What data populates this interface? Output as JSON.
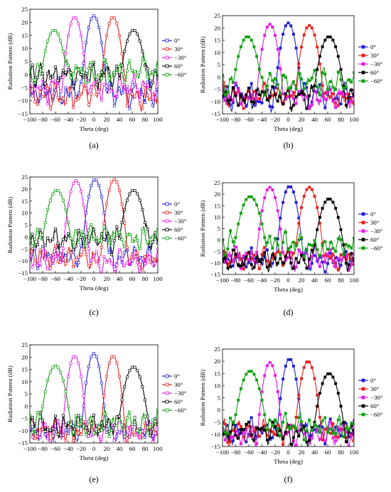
{
  "chart_data": [
    {
      "panel_label": "(a)",
      "type": "line",
      "xlabel": "Theta (deg)",
      "ylabel": "Radiation Pattern (dB)",
      "xlim": [
        -100,
        100
      ],
      "ylim": [
        -15,
        25
      ],
      "xticks": [
        "−100",
        "−80",
        "−60",
        "−40",
        "−20",
        "0",
        "20",
        "40",
        "60",
        "80",
        "100"
      ],
      "yticks": [
        "−15",
        "−10",
        "−5",
        "0",
        "5",
        "10",
        "15",
        "20",
        "25"
      ],
      "legend_position": "right",
      "marker": "open-square",
      "series": [
        {
          "name": "0°",
          "color": "#1f1fd6",
          "peak_x": 0,
          "peak_y": 22.5,
          "half_width": 13,
          "base": -7,
          "floor": -13
        },
        {
          "name": "30°",
          "color": "#e8211e",
          "peak_x": 30,
          "peak_y": 22,
          "half_width": 13,
          "base": -8,
          "floor": -14
        },
        {
          "name": "−30°",
          "color": "#e61be6",
          "peak_x": -30,
          "peak_y": 22,
          "half_width": 13,
          "base": -5,
          "floor": -14
        },
        {
          "name": "60°",
          "color": "#000000",
          "peak_x": 62,
          "peak_y": 17,
          "half_width": 17,
          "base": 0,
          "floor": -10
        },
        {
          "name": "−60°",
          "color": "#12a012",
          "peak_x": -62,
          "peak_y": 17,
          "half_width": 17,
          "base": 1,
          "floor": -3
        }
      ]
    },
    {
      "panel_label": "(b)",
      "type": "line",
      "xlabel": "Theta (deg)",
      "ylabel": "Radiation Pattern (dB)",
      "xlim": [
        -100,
        100
      ],
      "ylim": [
        -15,
        25
      ],
      "xticks": [
        "−100",
        "−80",
        "−60",
        "−40",
        "−20",
        "0",
        "20",
        "40",
        "60",
        "80",
        "100"
      ],
      "yticks": [
        "−15",
        "−10",
        "−5",
        "0",
        "5",
        "10",
        "15",
        "20",
        "25"
      ],
      "legend_position": "right",
      "marker": "filled-square",
      "series": [
        {
          "name": "0°",
          "color": "#1f1fd6",
          "peak_x": 0,
          "peak_y": 22,
          "half_width": 13,
          "base": -8,
          "floor": -15
        },
        {
          "name": "30°",
          "color": "#e8211e",
          "peak_x": 32,
          "peak_y": 21,
          "half_width": 14,
          "base": -8,
          "floor": -15
        },
        {
          "name": "−30°",
          "color": "#e61be6",
          "peak_x": -28,
          "peak_y": 21.5,
          "half_width": 13,
          "base": -8,
          "floor": -15
        },
        {
          "name": "60°",
          "color": "#000000",
          "peak_x": 62,
          "peak_y": 16.5,
          "half_width": 17,
          "base": -8,
          "floor": -15
        },
        {
          "name": "−60°",
          "color": "#12a012",
          "peak_x": -62,
          "peak_y": 16.5,
          "half_width": 17,
          "base": -2,
          "floor": -15
        }
      ]
    },
    {
      "panel_label": "(c)",
      "type": "line",
      "xlabel": "Theta (deg)",
      "ylabel": "Radiation Pattern (dB)",
      "xlim": [
        -100,
        100
      ],
      "ylim": [
        -15,
        25
      ],
      "xticks": [
        "−100",
        "−80",
        "−60",
        "−40",
        "−20",
        "0",
        "20",
        "40",
        "60",
        "80",
        "100"
      ],
      "yticks": [
        "−15",
        "−10",
        "−5",
        "0",
        "5",
        "10",
        "15",
        "20",
        "25"
      ],
      "legend_position": "top-right",
      "marker": "open-square",
      "series": [
        {
          "name": "0°",
          "color": "#1f1fd6",
          "peak_x": 2,
          "peak_y": 24,
          "half_width": 13,
          "base": -8,
          "floor": -14
        },
        {
          "name": "30°",
          "color": "#e8211e",
          "peak_x": 32,
          "peak_y": 24,
          "half_width": 13,
          "base": -9,
          "floor": -15
        },
        {
          "name": "−30°",
          "color": "#e61be6",
          "peak_x": -28,
          "peak_y": 23.5,
          "half_width": 13,
          "base": -10,
          "floor": -15
        },
        {
          "name": "60°",
          "color": "#000000",
          "peak_x": 62,
          "peak_y": 19.5,
          "half_width": 17,
          "base": -1,
          "floor": -12
        },
        {
          "name": "−60°",
          "color": "#12a012",
          "peak_x": -58,
          "peak_y": 19.5,
          "half_width": 17,
          "base": 0,
          "floor": -14
        }
      ]
    },
    {
      "panel_label": "(d)",
      "type": "line",
      "xlabel": "Theta (deg)",
      "ylabel": "Radiation Pattern (dB)",
      "xlim": [
        -100,
        100
      ],
      "ylim": [
        -15,
        25
      ],
      "xticks": [
        "−100",
        "−80",
        "−60",
        "−40",
        "−20",
        "0",
        "20",
        "40",
        "60",
        "80",
        "100"
      ],
      "yticks": [
        "−15",
        "−10",
        "−5",
        "0",
        "5",
        "10",
        "15",
        "20",
        "25"
      ],
      "legend_position": "right",
      "marker": "filled-square",
      "series": [
        {
          "name": "0°",
          "color": "#1f1fd6",
          "peak_x": 2,
          "peak_y": 23.5,
          "half_width": 13,
          "base": -9,
          "floor": -15
        },
        {
          "name": "30°",
          "color": "#e8211e",
          "peak_x": 32,
          "peak_y": 23,
          "half_width": 14,
          "base": -8,
          "floor": -15
        },
        {
          "name": "−30°",
          "color": "#e61be6",
          "peak_x": -28,
          "peak_y": 23,
          "half_width": 13,
          "base": -8,
          "floor": -15
        },
        {
          "name": "60°",
          "color": "#000000",
          "peak_x": 62,
          "peak_y": 18,
          "half_width": 17,
          "base": -9,
          "floor": -15
        },
        {
          "name": "−60°",
          "color": "#12a012",
          "peak_x": -58,
          "peak_y": 19,
          "half_width": 18,
          "base": -2,
          "floor": -15
        }
      ]
    },
    {
      "panel_label": "(e)",
      "type": "line",
      "xlabel": "Theta (deg)",
      "ylabel": "Radiation Pattern (dB)",
      "xlim": [
        -100,
        100
      ],
      "ylim": [
        -15,
        25
      ],
      "xticks": [
        "−100",
        "−80",
        "−60",
        "−40",
        "−20",
        "0",
        "20",
        "40",
        "60",
        "80",
        "100"
      ],
      "yticks": [
        "−15",
        "−10",
        "−5",
        "0",
        "5",
        "10",
        "15",
        "20",
        "25"
      ],
      "legend_position": "right",
      "marker": "open-square",
      "series": [
        {
          "name": "0°",
          "color": "#1f1fd6",
          "peak_x": 0,
          "peak_y": 21.5,
          "half_width": 12,
          "base": -10,
          "floor": -14
        },
        {
          "name": "30°",
          "color": "#e8211e",
          "peak_x": 30,
          "peak_y": 20.5,
          "half_width": 12,
          "base": -10,
          "floor": -15
        },
        {
          "name": "−30°",
          "color": "#e61be6",
          "peak_x": -30,
          "peak_y": 20.5,
          "half_width": 12,
          "base": -10,
          "floor": -15
        },
        {
          "name": "60°",
          "color": "#000000",
          "peak_x": 62,
          "peak_y": 16,
          "half_width": 17,
          "base": -8,
          "floor": -13
        },
        {
          "name": "−60°",
          "color": "#12a012",
          "peak_x": -60,
          "peak_y": 16.5,
          "half_width": 17,
          "base": -7,
          "floor": -13
        }
      ]
    },
    {
      "panel_label": "(f)",
      "type": "line",
      "xlabel": "Theta (deg)",
      "ylabel": "Radiation Pattern (dB)",
      "xlim": [
        -100,
        100
      ],
      "ylim": [
        -15,
        25
      ],
      "xticks": [
        "−100",
        "−80",
        "−60",
        "−40",
        "−20",
        "0",
        "20",
        "40",
        "60",
        "80",
        "100"
      ],
      "yticks": [
        "−15",
        "−10",
        "−5",
        "0",
        "5",
        "10",
        "15",
        "20",
        "25"
      ],
      "legend_position": "right",
      "marker": "filled-square",
      "series": [
        {
          "name": "0°",
          "color": "#1f1fd6",
          "peak_x": 2,
          "peak_y": 21,
          "half_width": 12,
          "base": -9,
          "floor": -15
        },
        {
          "name": "30°",
          "color": "#e8211e",
          "peak_x": 30,
          "peak_y": 20,
          "half_width": 13,
          "base": -9,
          "floor": -15
        },
        {
          "name": "−30°",
          "color": "#e61be6",
          "peak_x": -28,
          "peak_y": 19.5,
          "half_width": 12,
          "base": -10,
          "floor": -15
        },
        {
          "name": "60°",
          "color": "#000000",
          "peak_x": 62,
          "peak_y": 15,
          "half_width": 17,
          "base": -9,
          "floor": -15
        },
        {
          "name": "−60°",
          "color": "#12a012",
          "peak_x": -58,
          "peak_y": 16,
          "half_width": 18,
          "base": -7,
          "floor": -15
        }
      ]
    }
  ]
}
